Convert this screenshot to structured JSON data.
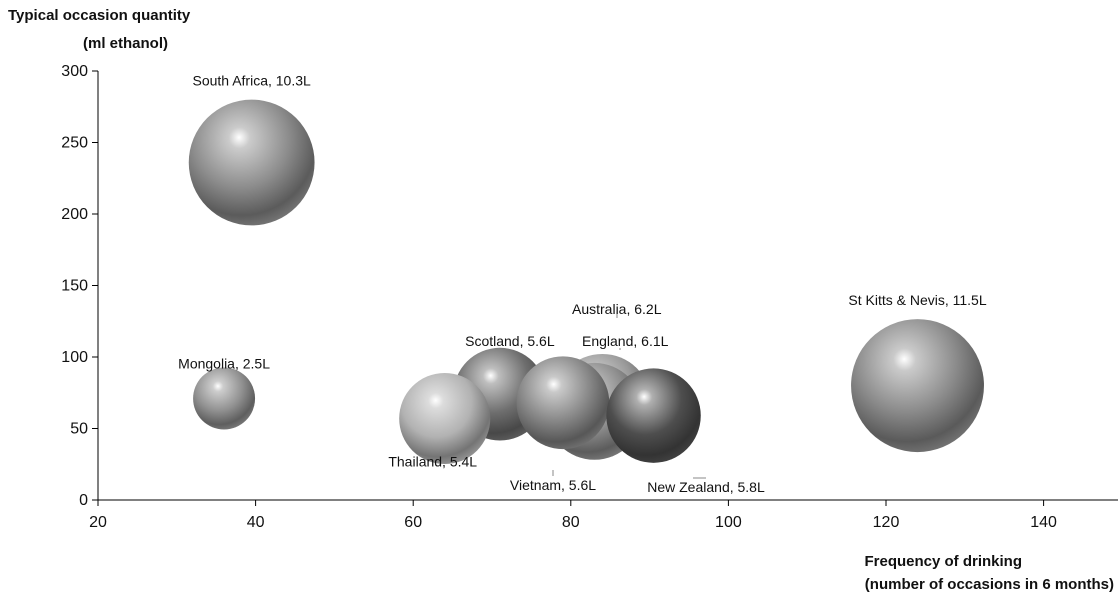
{
  "chart_data": {
    "type": "bubble",
    "title": "",
    "ylabel_lines": [
      "Typical occasion quantity",
      "(ml ethanol)"
    ],
    "xlabel_lines": [
      "Frequency of drinking",
      "(number of occasions in 6 months)"
    ],
    "xlim": [
      20,
      150
    ],
    "ylim": [
      0,
      300
    ],
    "x_ticks": [
      20,
      40,
      60,
      80,
      100,
      120,
      140
    ],
    "y_ticks": [
      0,
      50,
      100,
      150,
      200,
      250,
      300
    ],
    "points": [
      {
        "label": "South Africa, 10.3L",
        "x": 39.5,
        "y": 236,
        "size": 10.3,
        "color": "#8c8c8c"
      },
      {
        "label": "Mongolia, 2.5L",
        "x": 36,
        "y": 71,
        "size": 2.5,
        "color": "#909090"
      },
      {
        "label": "Scotland, 5.6L",
        "x": 71,
        "y": 74,
        "size": 5.6,
        "color": "#6e6e6e"
      },
      {
        "label": "Australia, 6.2L",
        "x": 84,
        "y": 68,
        "size": 6.2,
        "color": "#9a9a9a"
      },
      {
        "label": "England, 6.1L",
        "x": 83,
        "y": 62,
        "size": 6.1,
        "color": "#8e8e8e"
      },
      {
        "label": "Thailand, 5.4L",
        "x": 64,
        "y": 57,
        "size": 5.4,
        "color": "#b2b2b2"
      },
      {
        "label": "Vietnam, 5.6L",
        "x": 79,
        "y": 68,
        "size": 5.6,
        "color": "#868686"
      },
      {
        "label": "New Zealand, 5.8L",
        "x": 90.5,
        "y": 59,
        "size": 5.8,
        "color": "#4e4e4e"
      },
      {
        "label": "St Kitts & Nevis, 11.5L",
        "x": 124,
        "y": 80,
        "size": 11.5,
        "color": "#8a8a8a"
      }
    ]
  }
}
